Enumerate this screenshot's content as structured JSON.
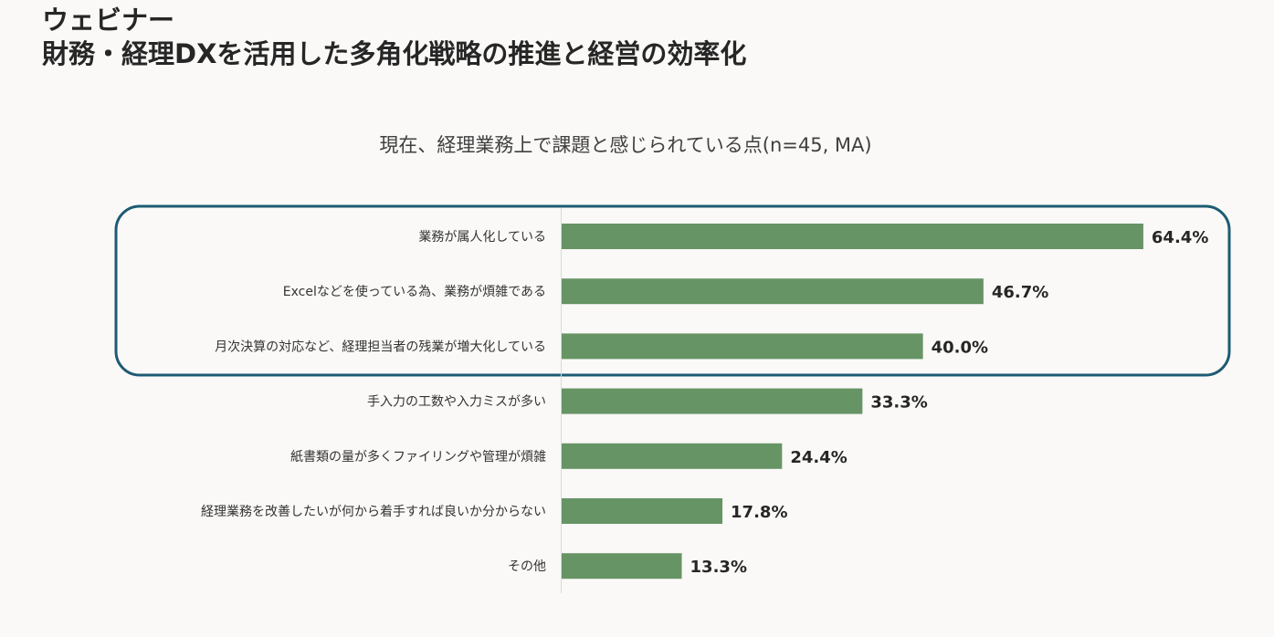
{
  "header": {
    "label": "ウェビナー",
    "title": "財務・経理DXを活用した多角化戦略の推進と経営の効率化"
  },
  "colors": {
    "bar": "#679465",
    "highlight_border": "#1d5b73",
    "axis": "#d9d9d9",
    "text": "#262626"
  },
  "chart_data": {
    "type": "bar",
    "orientation": "horizontal",
    "title": "現在、経理業務上で課題と感じられている点(n=45, MA)",
    "categories": [
      "業務が属人化している",
      "Excelなどを使っている為、業務が煩雑である",
      "月次決算の対応など、経理担当者の残業が増大化している",
      "手入力の工数や入力ミスが多い",
      "紙書類の量が多くファイリングや管理が煩雑",
      "経理業務を改善したいが何から着手すれば良いか分からない",
      "その他"
    ],
    "values": [
      64.4,
      46.7,
      40.0,
      33.3,
      24.4,
      17.8,
      13.3
    ],
    "value_labels": [
      "64.4%",
      "46.7%",
      "40.0%",
      "33.3%",
      "24.4%",
      "17.8%",
      "13.3%"
    ],
    "unit": "%",
    "xlim": [
      0,
      100
    ],
    "highlighted_categories": [
      0,
      1,
      2
    ],
    "xlabel": "",
    "ylabel": ""
  }
}
